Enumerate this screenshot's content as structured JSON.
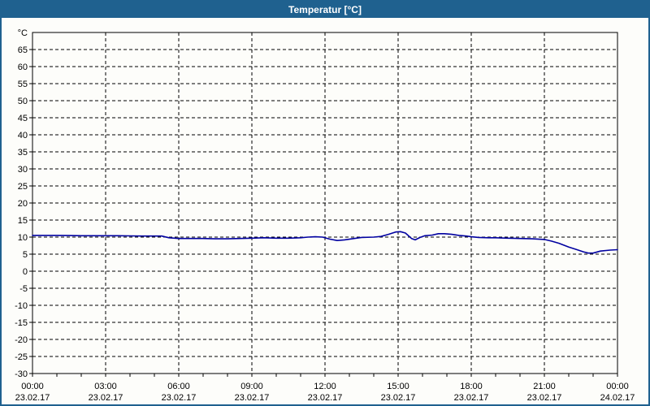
{
  "window": {
    "title": "Temperatur [°C]"
  },
  "colors": {
    "titlebar_bg": "#1F618F",
    "titlebar_text": "#FFFFFF",
    "window_border": "#1F618F",
    "background": "#FDFDFA",
    "grid": "#000000",
    "axis": "#000000",
    "line": "#0000A0",
    "text": "#000000"
  },
  "chart_data": {
    "type": "line",
    "title": "Temperatur [°C]",
    "ylabel": "°C",
    "xlabel": "",
    "ylim": [
      -30,
      70
    ],
    "xlim_hours": [
      0,
      24
    ],
    "grid": "dashed",
    "legend_position": "none",
    "y_ticks": [
      65,
      60,
      55,
      50,
      45,
      40,
      35,
      30,
      25,
      20,
      15,
      10,
      5,
      0,
      -5,
      -10,
      -15,
      -20,
      -25,
      -30
    ],
    "x_minor_tick_hours": 1,
    "x_major_ticks": [
      {
        "hour": 0,
        "time": "00:00",
        "date": "23.02.17"
      },
      {
        "hour": 3,
        "time": "03:00",
        "date": "23.02.17"
      },
      {
        "hour": 6,
        "time": "06:00",
        "date": "23.02.17"
      },
      {
        "hour": 9,
        "time": "09:00",
        "date": "23.02.17"
      },
      {
        "hour": 12,
        "time": "12:00",
        "date": "23.02.17"
      },
      {
        "hour": 15,
        "time": "15:00",
        "date": "23.02.17"
      },
      {
        "hour": 18,
        "time": "18:00",
        "date": "23.02.17"
      },
      {
        "hour": 21,
        "time": "21:00",
        "date": "23.02.17"
      },
      {
        "hour": 24,
        "time": "00:00",
        "date": "24.02.17"
      }
    ],
    "series": [
      {
        "name": "Temperatur",
        "color": "#0000A0",
        "points": [
          [
            0.0,
            10.5
          ],
          [
            0.5,
            10.5
          ],
          [
            1.0,
            10.5
          ],
          [
            1.5,
            10.45
          ],
          [
            2.0,
            10.4
          ],
          [
            2.5,
            10.4
          ],
          [
            3.0,
            10.4
          ],
          [
            3.5,
            10.4
          ],
          [
            4.0,
            10.35
          ],
          [
            4.5,
            10.3
          ],
          [
            5.0,
            10.3
          ],
          [
            5.3,
            10.3
          ],
          [
            5.6,
            9.8
          ],
          [
            6.0,
            9.6
          ],
          [
            6.5,
            9.6
          ],
          [
            7.0,
            9.6
          ],
          [
            7.5,
            9.5
          ],
          [
            8.0,
            9.5
          ],
          [
            8.5,
            9.6
          ],
          [
            9.0,
            9.7
          ],
          [
            9.5,
            9.8
          ],
          [
            10.0,
            9.7
          ],
          [
            10.5,
            9.7
          ],
          [
            11.0,
            9.8
          ],
          [
            11.3,
            10.0
          ],
          [
            11.6,
            10.1
          ],
          [
            11.9,
            10.0
          ],
          [
            12.2,
            9.4
          ],
          [
            12.5,
            9.0
          ],
          [
            12.8,
            9.2
          ],
          [
            13.2,
            9.6
          ],
          [
            13.5,
            9.9
          ],
          [
            14.0,
            10.0
          ],
          [
            14.3,
            10.2
          ],
          [
            14.6,
            10.8
          ],
          [
            14.9,
            11.5
          ],
          [
            15.1,
            11.6
          ],
          [
            15.3,
            11.2
          ],
          [
            15.55,
            9.6
          ],
          [
            15.7,
            9.2
          ],
          [
            15.9,
            9.9
          ],
          [
            16.1,
            10.4
          ],
          [
            16.4,
            10.6
          ],
          [
            16.65,
            11.0
          ],
          [
            16.9,
            11.0
          ],
          [
            17.2,
            10.8
          ],
          [
            17.5,
            10.5
          ],
          [
            17.8,
            10.3
          ],
          [
            18.0,
            10.1
          ],
          [
            18.3,
            9.9
          ],
          [
            18.7,
            9.8
          ],
          [
            19.0,
            9.8
          ],
          [
            19.5,
            9.7
          ],
          [
            20.0,
            9.6
          ],
          [
            20.5,
            9.5
          ],
          [
            21.0,
            9.3
          ],
          [
            21.3,
            8.8
          ],
          [
            21.6,
            8.2
          ],
          [
            22.0,
            7.1
          ],
          [
            22.3,
            6.4
          ],
          [
            22.6,
            5.7
          ],
          [
            22.8,
            5.3
          ],
          [
            23.0,
            5.3
          ],
          [
            23.3,
            5.9
          ],
          [
            23.7,
            6.2
          ],
          [
            24.0,
            6.3
          ]
        ]
      }
    ]
  }
}
